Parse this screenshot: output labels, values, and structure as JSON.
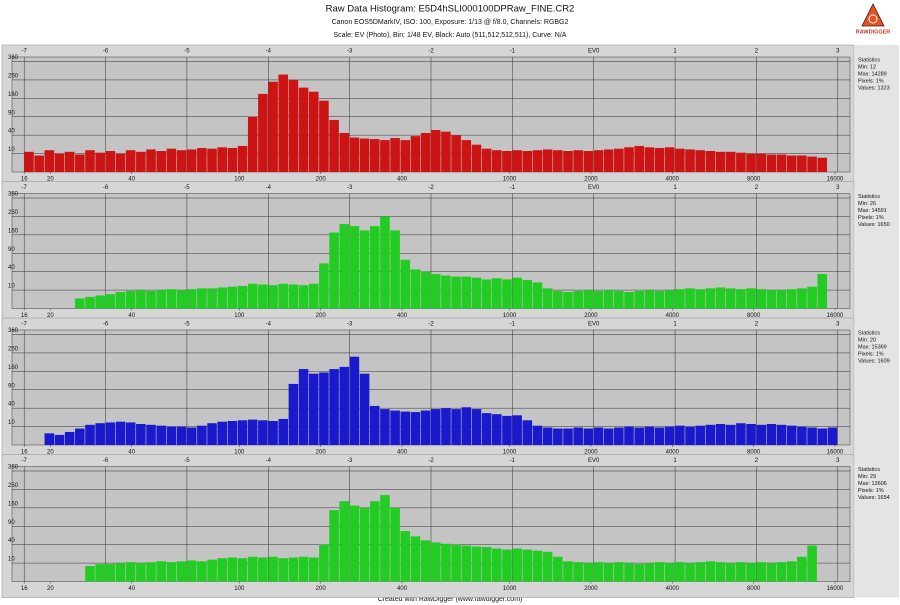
{
  "header": {
    "title": "Raw Data Histogram: E5D4hSLI000100DPRaw_FINE.CR2",
    "camera_line": "Canon EOS5DMarkIV, ISO: 100, Exposure: 1/13 @ f/8.0, Channels: RGBG2",
    "scale_line": "Scale: EV (Photo), Bin: 1/48 EV, Black: Auto (511,512,512,511), Curve: N/A",
    "logo": "RAWDIGGER"
  },
  "footer": "Created with RawDigger (www.rawdigger.com)",
  "chart_data": [
    {
      "type": "histogram",
      "color": "#cc1414",
      "yscale": "sqrt",
      "grid": true,
      "xlim": [
        -7.15,
        3.15
      ],
      "ylim": [
        0,
        390
      ],
      "yticks": [
        10,
        40,
        90,
        160,
        250,
        360
      ],
      "xticks": [
        -7,
        -6,
        -5,
        -4,
        -3,
        -2,
        -1,
        {
          "value": 0,
          "label": "EV0"
        },
        1,
        2,
        3
      ],
      "x2ticks": [
        {
          "value": -7,
          "label": "16"
        },
        {
          "value": -6.678,
          "label": "20"
        },
        {
          "value": -5.678,
          "label": "40"
        },
        {
          "value": -4.356,
          "label": "100"
        },
        {
          "value": -3.356,
          "label": "200"
        },
        {
          "value": -2.356,
          "label": "400"
        },
        {
          "value": -1.034,
          "label": "1000"
        },
        {
          "value": -0.034,
          "label": "2000"
        },
        {
          "value": 0.966,
          "label": "4000"
        },
        {
          "value": 1.966,
          "label": "8000"
        },
        {
          "value": 2.966,
          "label": "16000"
        }
      ],
      "stats": [
        "Statistics",
        "Min: 12",
        "Max: 14289",
        "Pixels: 1%",
        "Values: 1323"
      ],
      "bins": [
        -7,
        -6.875,
        -6.75,
        -6.625,
        -6.5,
        -6.375,
        -6.25,
        -6.125,
        -6,
        -5.875,
        -5.75,
        -5.625,
        -5.5,
        -5.375,
        -5.25,
        -5.125,
        -5,
        -4.875,
        -4.75,
        -4.625,
        -4.5,
        -4.375,
        -4.25,
        -4.125,
        -4,
        -3.875,
        -3.75,
        -3.625,
        -3.5,
        -3.375,
        -3.25,
        -3.125,
        -3,
        -2.875,
        -2.75,
        -2.625,
        -2.5,
        -2.375,
        -2.25,
        -2.125,
        -2,
        -1.875,
        -1.75,
        -1.625,
        -1.5,
        -1.375,
        -1.25,
        -1.125,
        -1,
        -0.875,
        -0.75,
        -0.625,
        -0.5,
        -0.375,
        -0.25,
        -0.125,
        0,
        0.125,
        0.25,
        0.375,
        0.5,
        0.625,
        0.75,
        0.875,
        1,
        1.125,
        1.25,
        1.375,
        1.5,
        1.625,
        1.75,
        1.875,
        2,
        2.125,
        2.25,
        2.375,
        2.5,
        2.625,
        2.75,
        2.875,
        3
      ],
      "values": [
        12,
        8,
        14,
        10,
        12,
        9,
        14,
        11,
        13,
        10,
        14,
        12,
        15,
        13,
        16,
        14,
        15,
        17,
        16,
        18,
        17,
        20,
        90,
        180,
        240,
        280,
        250,
        210,
        190,
        150,
        80,
        45,
        35,
        33,
        32,
        30,
        34,
        30,
        38,
        45,
        52,
        48,
        40,
        30,
        22,
        16,
        14,
        13,
        14,
        13,
        14,
        15,
        14,
        13,
        14,
        13,
        14,
        15,
        16,
        18,
        20,
        18,
        17,
        18,
        16,
        15,
        14,
        13,
        12,
        12,
        11,
        10,
        10,
        9,
        9,
        8,
        8,
        7,
        6,
        0
      ]
    },
    {
      "type": "histogram",
      "color": "#22cc22",
      "yscale": "sqrt",
      "grid": true,
      "xlim": [
        -7.15,
        3.15
      ],
      "ylim": [
        0,
        390
      ],
      "yticks": [
        10,
        40,
        90,
        160,
        250,
        360
      ],
      "xticks": [
        -7,
        -6,
        -5,
        -4,
        -3,
        -2,
        -1,
        {
          "value": 0,
          "label": "EV0"
        },
        1,
        2,
        3
      ],
      "x2ticks": [
        {
          "value": -7,
          "label": "16"
        },
        {
          "value": -6.678,
          "label": "20"
        },
        {
          "value": -5.678,
          "label": "40"
        },
        {
          "value": -4.356,
          "label": "100"
        },
        {
          "value": -3.356,
          "label": "200"
        },
        {
          "value": -2.356,
          "label": "400"
        },
        {
          "value": -1.034,
          "label": "1000"
        },
        {
          "value": -0.034,
          "label": "2000"
        },
        {
          "value": 0.966,
          "label": "4000"
        },
        {
          "value": 1.966,
          "label": "8000"
        },
        {
          "value": 2.966,
          "label": "16000"
        }
      ],
      "stats": [
        "Statistics",
        "Min: 26",
        "Max: 14591",
        "Pixels: 1%",
        "Values: 1650"
      ],
      "bins": [
        -7,
        -6.875,
        -6.75,
        -6.625,
        -6.5,
        -6.375,
        -6.25,
        -6.125,
        -6,
        -5.875,
        -5.75,
        -5.625,
        -5.5,
        -5.375,
        -5.25,
        -5.125,
        -5,
        -4.875,
        -4.75,
        -4.625,
        -4.5,
        -4.375,
        -4.25,
        -4.125,
        -4,
        -3.875,
        -3.75,
        -3.625,
        -3.5,
        -3.375,
        -3.25,
        -3.125,
        -3,
        -2.875,
        -2.75,
        -2.625,
        -2.5,
        -2.375,
        -2.25,
        -2.125,
        -2,
        -1.875,
        -1.75,
        -1.625,
        -1.5,
        -1.375,
        -1.25,
        -1.125,
        -1,
        -0.875,
        -0.75,
        -0.625,
        -0.5,
        -0.375,
        -0.25,
        -0.125,
        0,
        0.125,
        0.25,
        0.375,
        0.5,
        0.625,
        0.75,
        0.875,
        1,
        1.125,
        1.25,
        1.375,
        1.5,
        1.625,
        1.75,
        1.875,
        2,
        2.125,
        2.25,
        2.375,
        2.5,
        2.625,
        2.75,
        2.875,
        3
      ],
      "values": [
        0,
        0,
        0,
        0,
        0,
        3,
        4,
        5,
        6,
        8,
        9,
        10,
        9,
        10,
        11,
        10,
        11,
        12,
        12,
        13,
        14,
        15,
        18,
        17,
        16,
        18,
        17,
        16,
        18,
        60,
        170,
        210,
        200,
        180,
        200,
        250,
        180,
        70,
        45,
        40,
        35,
        32,
        30,
        30,
        28,
        25,
        27,
        25,
        28,
        24,
        20,
        12,
        9,
        8,
        9,
        10,
        9,
        10,
        9,
        8,
        9,
        10,
        9,
        10,
        11,
        12,
        11,
        12,
        13,
        12,
        11,
        12,
        11,
        10,
        10,
        11,
        12,
        14,
        35,
        0
      ]
    },
    {
      "type": "histogram",
      "color": "#1a1acc",
      "yscale": "sqrt",
      "grid": true,
      "xlim": [
        -7.15,
        3.15
      ],
      "ylim": [
        0,
        390
      ],
      "yticks": [
        10,
        40,
        90,
        160,
        250,
        360
      ],
      "xticks": [
        -7,
        -6,
        -5,
        -4,
        -3,
        -2,
        -1,
        {
          "value": 0,
          "label": "EV0"
        },
        1,
        2,
        3
      ],
      "x2ticks": [
        {
          "value": -7,
          "label": "16"
        },
        {
          "value": -6.678,
          "label": "20"
        },
        {
          "value": -5.678,
          "label": "40"
        },
        {
          "value": -4.356,
          "label": "100"
        },
        {
          "value": -3.356,
          "label": "200"
        },
        {
          "value": -2.356,
          "label": "400"
        },
        {
          "value": -1.034,
          "label": "1000"
        },
        {
          "value": -0.034,
          "label": "2000"
        },
        {
          "value": 0.966,
          "label": "4000"
        },
        {
          "value": 1.966,
          "label": "8000"
        },
        {
          "value": 2.966,
          "label": "16000"
        }
      ],
      "stats": [
        "Statistics",
        "Min: 20",
        "Max: 15369",
        "Pixels: 1%",
        "Values: 1609"
      ],
      "bins": [
        -7,
        -6.875,
        -6.75,
        -6.625,
        -6.5,
        -6.375,
        -6.25,
        -6.125,
        -6,
        -5.875,
        -5.75,
        -5.625,
        -5.5,
        -5.375,
        -5.25,
        -5.125,
        -5,
        -4.875,
        -4.75,
        -4.625,
        -4.5,
        -4.375,
        -4.25,
        -4.125,
        -4,
        -3.875,
        -3.75,
        -3.625,
        -3.5,
        -3.375,
        -3.25,
        -3.125,
        -3,
        -2.875,
        -2.75,
        -2.625,
        -2.5,
        -2.375,
        -2.25,
        -2.125,
        -2,
        -1.875,
        -1.75,
        -1.625,
        -1.5,
        -1.375,
        -1.25,
        -1.125,
        -1,
        -0.875,
        -0.75,
        -0.625,
        -0.5,
        -0.375,
        -0.25,
        -0.125,
        0,
        0.125,
        0.25,
        0.375,
        0.5,
        0.625,
        0.75,
        0.875,
        1,
        1.125,
        1.25,
        1.375,
        1.5,
        1.625,
        1.75,
        1.875,
        2,
        2.125,
        2.25,
        2.375,
        2.5,
        2.625,
        2.75,
        2.875,
        3
      ],
      "values": [
        0,
        0,
        4,
        3,
        5,
        8,
        12,
        14,
        15,
        16,
        15,
        13,
        12,
        11,
        10,
        10,
        9,
        11,
        14,
        16,
        17,
        18,
        19,
        18,
        17,
        20,
        110,
        170,
        150,
        155,
        170,
        180,
        230,
        150,
        45,
        38,
        35,
        33,
        32,
        35,
        38,
        40,
        38,
        42,
        38,
        30,
        28,
        25,
        26,
        18,
        11,
        9,
        8,
        8,
        9,
        8,
        9,
        8,
        9,
        10,
        9,
        10,
        9,
        10,
        11,
        10,
        11,
        12,
        13,
        12,
        14,
        13,
        12,
        13,
        12,
        11,
        10,
        9,
        8,
        9
      ]
    },
    {
      "type": "histogram",
      "color": "#22cc22",
      "yscale": "sqrt",
      "grid": true,
      "xlim": [
        -7.15,
        3.15
      ],
      "ylim": [
        0,
        390
      ],
      "yticks": [
        10,
        40,
        90,
        160,
        250,
        360
      ],
      "xticks": [
        -7,
        -6,
        -5,
        -4,
        -3,
        -2,
        -1,
        {
          "value": 0,
          "label": "EV0"
        },
        1,
        2,
        3
      ],
      "x2ticks": [
        {
          "value": -7,
          "label": "16"
        },
        {
          "value": -6.678,
          "label": "20"
        },
        {
          "value": -5.678,
          "label": "40"
        },
        {
          "value": -4.356,
          "label": "100"
        },
        {
          "value": -3.356,
          "label": "200"
        },
        {
          "value": -2.356,
          "label": "400"
        },
        {
          "value": -1.034,
          "label": "1000"
        },
        {
          "value": -0.034,
          "label": "2000"
        },
        {
          "value": 0.966,
          "label": "4000"
        },
        {
          "value": 1.966,
          "label": "8000"
        },
        {
          "value": 2.966,
          "label": "16000"
        }
      ],
      "stats": [
        "Statistics",
        "Min: 29",
        "Max: 13606",
        "Pixels: 1%",
        "Values: 1654"
      ],
      "bins": [
        -7,
        -6.875,
        -6.75,
        -6.625,
        -6.5,
        -6.375,
        -6.25,
        -6.125,
        -6,
        -5.875,
        -5.75,
        -5.625,
        -5.5,
        -5.375,
        -5.25,
        -5.125,
        -5,
        -4.875,
        -4.75,
        -4.625,
        -4.5,
        -4.375,
        -4.25,
        -4.125,
        -4,
        -3.875,
        -3.75,
        -3.625,
        -3.5,
        -3.375,
        -3.25,
        -3.125,
        -3,
        -2.875,
        -2.75,
        -2.625,
        -2.5,
        -2.375,
        -2.25,
        -2.125,
        -2,
        -1.875,
        -1.75,
        -1.625,
        -1.5,
        -1.375,
        -1.25,
        -1.125,
        -1,
        -0.875,
        -0.75,
        -0.625,
        -0.5,
        -0.375,
        -0.25,
        -0.125,
        0,
        0.125,
        0.25,
        0.375,
        0.5,
        0.625,
        0.75,
        0.875,
        1,
        1.125,
        1.25,
        1.375,
        1.5,
        1.625,
        1.75,
        1.875,
        2,
        2.125,
        2.25,
        2.375,
        2.5,
        2.625,
        2.75,
        2.875,
        3
      ],
      "values": [
        0,
        0,
        0,
        0,
        0,
        0,
        7,
        9,
        9,
        10,
        11,
        10,
        11,
        12,
        11,
        12,
        13,
        12,
        14,
        16,
        17,
        16,
        18,
        17,
        18,
        16,
        17,
        18,
        17,
        40,
        150,
        190,
        170,
        160,
        190,
        220,
        160,
        75,
        60,
        50,
        45,
        42,
        40,
        38,
        36,
        35,
        32,
        30,
        32,
        30,
        28,
        26,
        18,
        12,
        11,
        10,
        11,
        10,
        11,
        10,
        9,
        10,
        11,
        10,
        11,
        10,
        11,
        12,
        11,
        10,
        11,
        10,
        11,
        10,
        11,
        12,
        18,
        38,
        0,
        0
      ]
    }
  ]
}
